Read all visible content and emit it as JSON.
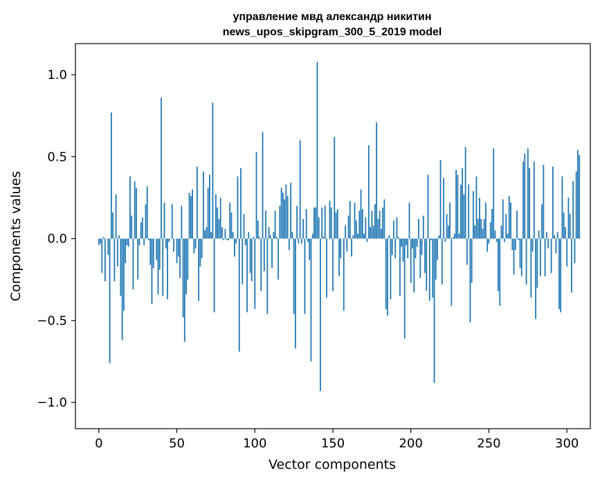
{
  "chart_data": {
    "type": "bar",
    "title": "управление мвд александр никитин",
    "subtitle": "news_upos_skipgram_300_5_2019 model",
    "xlabel": "Vector components",
    "ylabel": "Components values",
    "xlim": [
      -15,
      315
    ],
    "ylim": [
      -1.16,
      1.19
    ],
    "xticks": [
      0,
      50,
      100,
      150,
      200,
      250,
      300
    ],
    "xtick_labels": [
      "0",
      "50",
      "100",
      "150",
      "200",
      "250",
      "300"
    ],
    "yticks": [
      -1.0,
      -0.5,
      0.0,
      0.5,
      1.0
    ],
    "ytick_labels": [
      "−1.0",
      "−0.5",
      "0.0",
      "0.5",
      "1.0"
    ],
    "grid": false,
    "series_color": "#1f77b4",
    "values": [
      -0.04,
      -0.03,
      -0.21,
      0.01,
      -0.26,
      0.0,
      -0.1,
      -0.76,
      0.77,
      0.16,
      -0.26,
      0.27,
      -0.17,
      0.02,
      -0.35,
      -0.62,
      -0.44,
      -0.15,
      -0.04,
      -0.05,
      0.38,
      0.14,
      -0.31,
      0.35,
      0.31,
      -0.25,
      -0.04,
      0.1,
      0.13,
      -0.04,
      0.21,
      0.32,
      -0.01,
      -0.16,
      -0.4,
      -0.18,
      0.0,
      -0.13,
      -0.34,
      -0.19,
      0.86,
      -0.35,
      0.22,
      -0.06,
      -0.37,
      -0.02,
      0.0,
      0.21,
      -0.08,
      0.0,
      -0.15,
      -0.11,
      -0.24,
      0.2,
      -0.48,
      -0.63,
      -0.34,
      -0.25,
      0.28,
      0.26,
      0.3,
      -0.09,
      -0.06,
      0.44,
      -0.38,
      -0.17,
      -0.12,
      0.41,
      0.05,
      0.07,
      0.31,
      0.39,
      0.04,
      0.83,
      -0.45,
      0.27,
      0.19,
      0.12,
      0.25,
      0.07,
      -0.01,
      0.06,
      -0.01,
      -0.01,
      0.22,
      0.16,
      0.04,
      -0.11,
      -0.03,
      0.38,
      -0.69,
      0.43,
      -0.28,
      0.15,
      -0.04,
      -0.45,
      0.04,
      -0.21,
      -0.26,
      0.01,
      -0.43,
      0.53,
      0.11,
      0.01,
      -0.32,
      0.65,
      -0.2,
      0.17,
      -0.46,
      0.07,
      0.02,
      -0.18,
      0.04,
      0.17,
      0.01,
      -0.25,
      0.2,
      0.31,
      0.28,
      0.24,
      0.33,
      0.26,
      -0.07,
      0.34,
      0.04,
      -0.46,
      -0.67,
      0.2,
      -0.03,
      0.6,
      -0.03,
      0.12,
      -0.46,
      0.18,
      -0.02,
      -0.13,
      -0.75,
      0.03,
      0.19,
      0.19,
      1.08,
      0.13,
      -0.93,
      0.19,
      0.01,
      0.2,
      -0.36,
      0.0,
      0.23,
      0.19,
      -0.32,
      0.62,
      0.16,
      0.18,
      -0.23,
      -0.12,
      0.0,
      -0.44,
      0.08,
      -0.08,
      0.14,
      0.23,
      -0.11,
      0.02,
      0.22,
      0.11,
      0.03,
      0.17,
      0.3,
      0.18,
      0.03,
      0.13,
      -0.02,
      0.57,
      0.07,
      0.17,
      0.08,
      0.21,
      0.71,
      0.12,
      0.17,
      0.06,
      0.19,
      0.24,
      -0.43,
      -0.47,
      0.02,
      -0.37,
      -0.1,
      0.11,
      -0.12,
      0.13,
      0.01,
      -0.35,
      -0.05,
      -0.14,
      -0.61,
      -0.04,
      -0.12,
      0.22,
      -0.27,
      -0.06,
      -0.33,
      -0.12,
      -0.05,
      0.12,
      -0.24,
      -0.1,
      0.14,
      -0.21,
      -0.32,
      0.39,
      -0.38,
      -0.01,
      -0.36,
      -0.88,
      -0.25,
      -0.13,
      0.02,
      0.48,
      -0.28,
      0.37,
      -0.02,
      0.15,
      0.08,
      0.22,
      -0.41,
      0.01,
      0.03,
      0.42,
      0.39,
      0.03,
      0.33,
      0.43,
      0.27,
      0.56,
      -0.16,
      0.33,
      -0.51,
      -0.27,
      0.29,
      0.08,
      0.38,
      0.12,
      0.25,
      0.12,
      0.06,
      0.12,
      0.22,
      -0.08,
      -0.03,
      0.1,
      0.18,
      0.55,
      0.05,
      -0.02,
      -0.32,
      -0.41,
      0.08,
      0.24,
      -0.02,
      0.15,
      0.03,
      0.26,
      0.22,
      -0.07,
      -0.22,
      -0.07,
      0.17,
      -0.01,
      -0.18,
      -0.23,
      0.47,
      0.52,
      -0.28,
      0.55,
      0.43,
      -0.36,
      -0.08,
      0.47,
      -0.49,
      -0.3,
      0.05,
      -0.23,
      0.21,
      0.45,
      -0.23,
      0.04,
      -0.06,
      0.0,
      -0.21,
      0.44,
      0.02,
      -0.09,
      0.04,
      -0.43,
      -0.45,
      0.38,
      0.16,
      0.07,
      -0.17,
      0.25,
      0.15,
      -0.33,
      0.35,
      -0.15,
      0.41,
      0.54,
      0.51
    ]
  }
}
